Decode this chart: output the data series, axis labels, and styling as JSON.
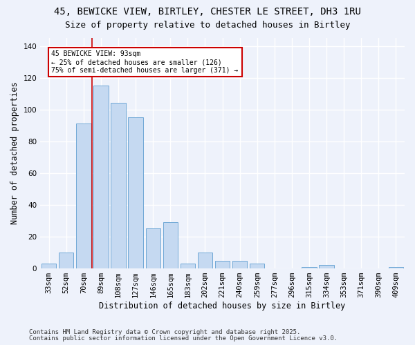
{
  "title1": "45, BEWICKE VIEW, BIRTLEY, CHESTER LE STREET, DH3 1RU",
  "title2": "Size of property relative to detached houses in Birtley",
  "xlabel": "Distribution of detached houses by size in Birtley",
  "ylabel": "Number of detached properties",
  "bar_labels": [
    "33sqm",
    "52sqm",
    "70sqm",
    "89sqm",
    "108sqm",
    "127sqm",
    "146sqm",
    "165sqm",
    "183sqm",
    "202sqm",
    "221sqm",
    "240sqm",
    "259sqm",
    "277sqm",
    "296sqm",
    "315sqm",
    "334sqm",
    "353sqm",
    "371sqm",
    "390sqm",
    "409sqm"
  ],
  "bar_values": [
    3,
    10,
    91,
    115,
    104,
    95,
    25,
    29,
    3,
    10,
    5,
    5,
    3,
    0,
    0,
    1,
    2,
    0,
    0,
    0,
    1
  ],
  "bar_color": "#c5d9f1",
  "bar_edge_color": "#6fa8d6",
  "vline_color": "#cc0000",
  "annotation_text": "45 BEWICKE VIEW: 93sqm\n← 25% of detached houses are smaller (126)\n75% of semi-detached houses are larger (371) →",
  "annotation_box_color": "#ffffff",
  "annotation_box_edge": "#cc0000",
  "ylim": [
    0,
    145
  ],
  "yticks": [
    0,
    20,
    40,
    60,
    80,
    100,
    120,
    140
  ],
  "footer1": "Contains HM Land Registry data © Crown copyright and database right 2025.",
  "footer2": "Contains public sector information licensed under the Open Government Licence v3.0.",
  "bg_color": "#eef2fb",
  "grid_color": "#ffffff",
  "title_fontsize": 10,
  "subtitle_fontsize": 9,
  "label_fontsize": 8.5,
  "tick_fontsize": 7.5,
  "footer_fontsize": 6.5
}
